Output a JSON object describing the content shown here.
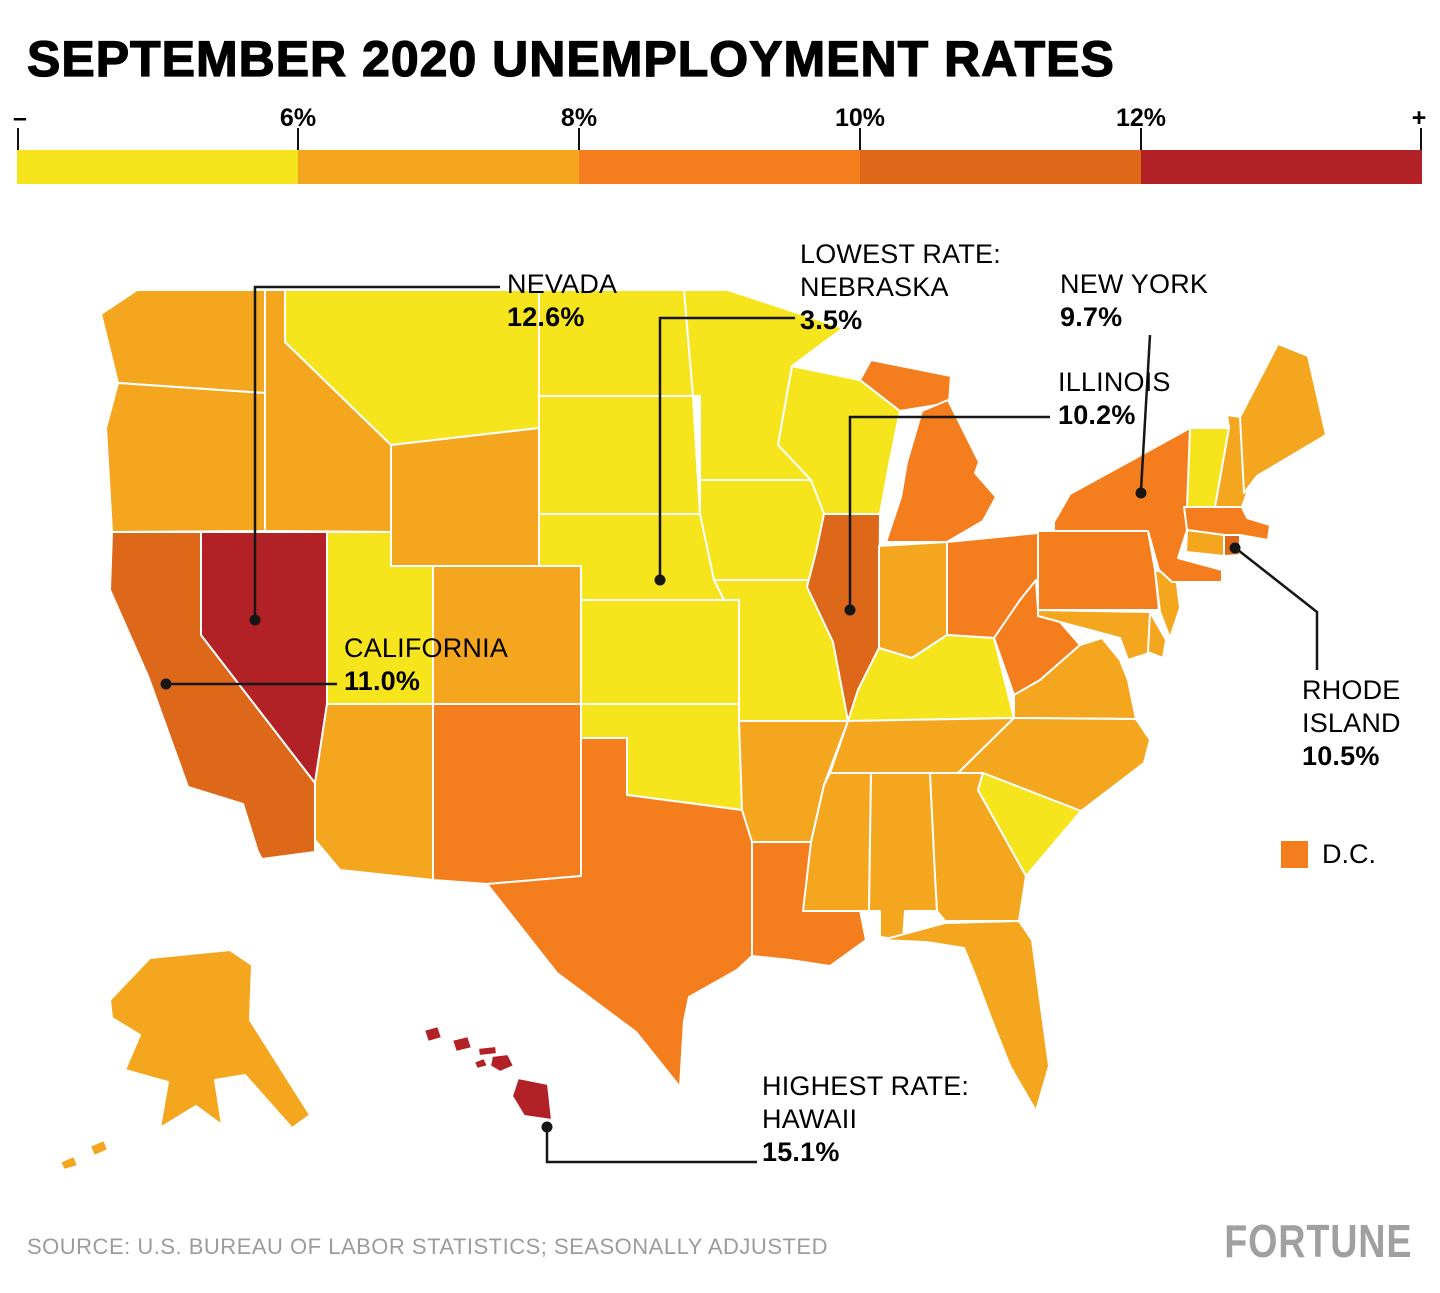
{
  "title": "SEPTEMBER 2020 UNEMPLOYMENT RATES",
  "legend": {
    "min_label": "–",
    "max_label": "+",
    "ticks": [
      "6%",
      "8%",
      "10%",
      "12%"
    ],
    "colors": {
      "c1": "#F6E51C",
      "c2": "#F4A61F",
      "c3": "#F47E1E",
      "c4": "#DE681A",
      "c5": "#B22125"
    },
    "ranges": {
      "c1": "under 6%",
      "c2": "6%–8%",
      "c3": "8%–10%",
      "c4": "10%–12%",
      "c5": "over 12%"
    }
  },
  "callouts": [
    {
      "id": "nevada",
      "lines": [
        "NEVADA"
      ],
      "value": "12.6%"
    },
    {
      "id": "nebraska",
      "lines": [
        "LOWEST RATE:",
        "NEBRASKA"
      ],
      "value": "3.5%"
    },
    {
      "id": "new-york",
      "lines": [
        "NEW YORK"
      ],
      "value": "9.7%"
    },
    {
      "id": "illinois",
      "lines": [
        "ILLINOIS"
      ],
      "value": "10.2%"
    },
    {
      "id": "california",
      "lines": [
        "CALIFORNIA"
      ],
      "value": "11.0%"
    },
    {
      "id": "rhode-island",
      "lines": [
        "RHODE",
        "ISLAND"
      ],
      "value": "10.5%"
    },
    {
      "id": "hawaii",
      "lines": [
        "HIGHEST RATE:",
        "HAWAII"
      ],
      "value": "15.1%"
    }
  ],
  "dc_label": "D.C.",
  "map": {
    "states": {
      "WA": "c2",
      "OR": "c2",
      "CA": "c4",
      "NV": "c5",
      "ID": "c2",
      "MT": "c1",
      "WY": "c2",
      "UT": "c1",
      "CO": "c2",
      "AZ": "c2",
      "NM": "c3",
      "ND": "c1",
      "SD": "c1",
      "NE": "c1",
      "KS": "c1",
      "OK": "c1",
      "TX": "c3",
      "MN": "c1",
      "IA": "c1",
      "MO": "c1",
      "AR": "c2",
      "LA": "c3",
      "WI": "c1",
      "IL": "c4",
      "MI": "c3",
      "IN": "c2",
      "OH": "c3",
      "KY": "c1",
      "TN": "c2",
      "MS": "c2",
      "AL": "c2",
      "GA": "c2",
      "FL": "c2",
      "SC": "c1",
      "NC": "c2",
      "VA": "c2",
      "WV": "c3",
      "MD": "c2",
      "DE": "c2",
      "NJ": "c2",
      "PA": "c3",
      "NY": "c3",
      "CT": "c2",
      "RI": "c4",
      "MA": "c3",
      "VT": "c1",
      "NH": "c2",
      "ME": "c2",
      "AK": "c2",
      "HI": "c5",
      "DC": "c3"
    }
  },
  "source": "SOURCE: U.S. BUREAU OF LABOR STATISTICS; SEASONALLY ADJUSTED",
  "brand": "FORTUNE"
}
